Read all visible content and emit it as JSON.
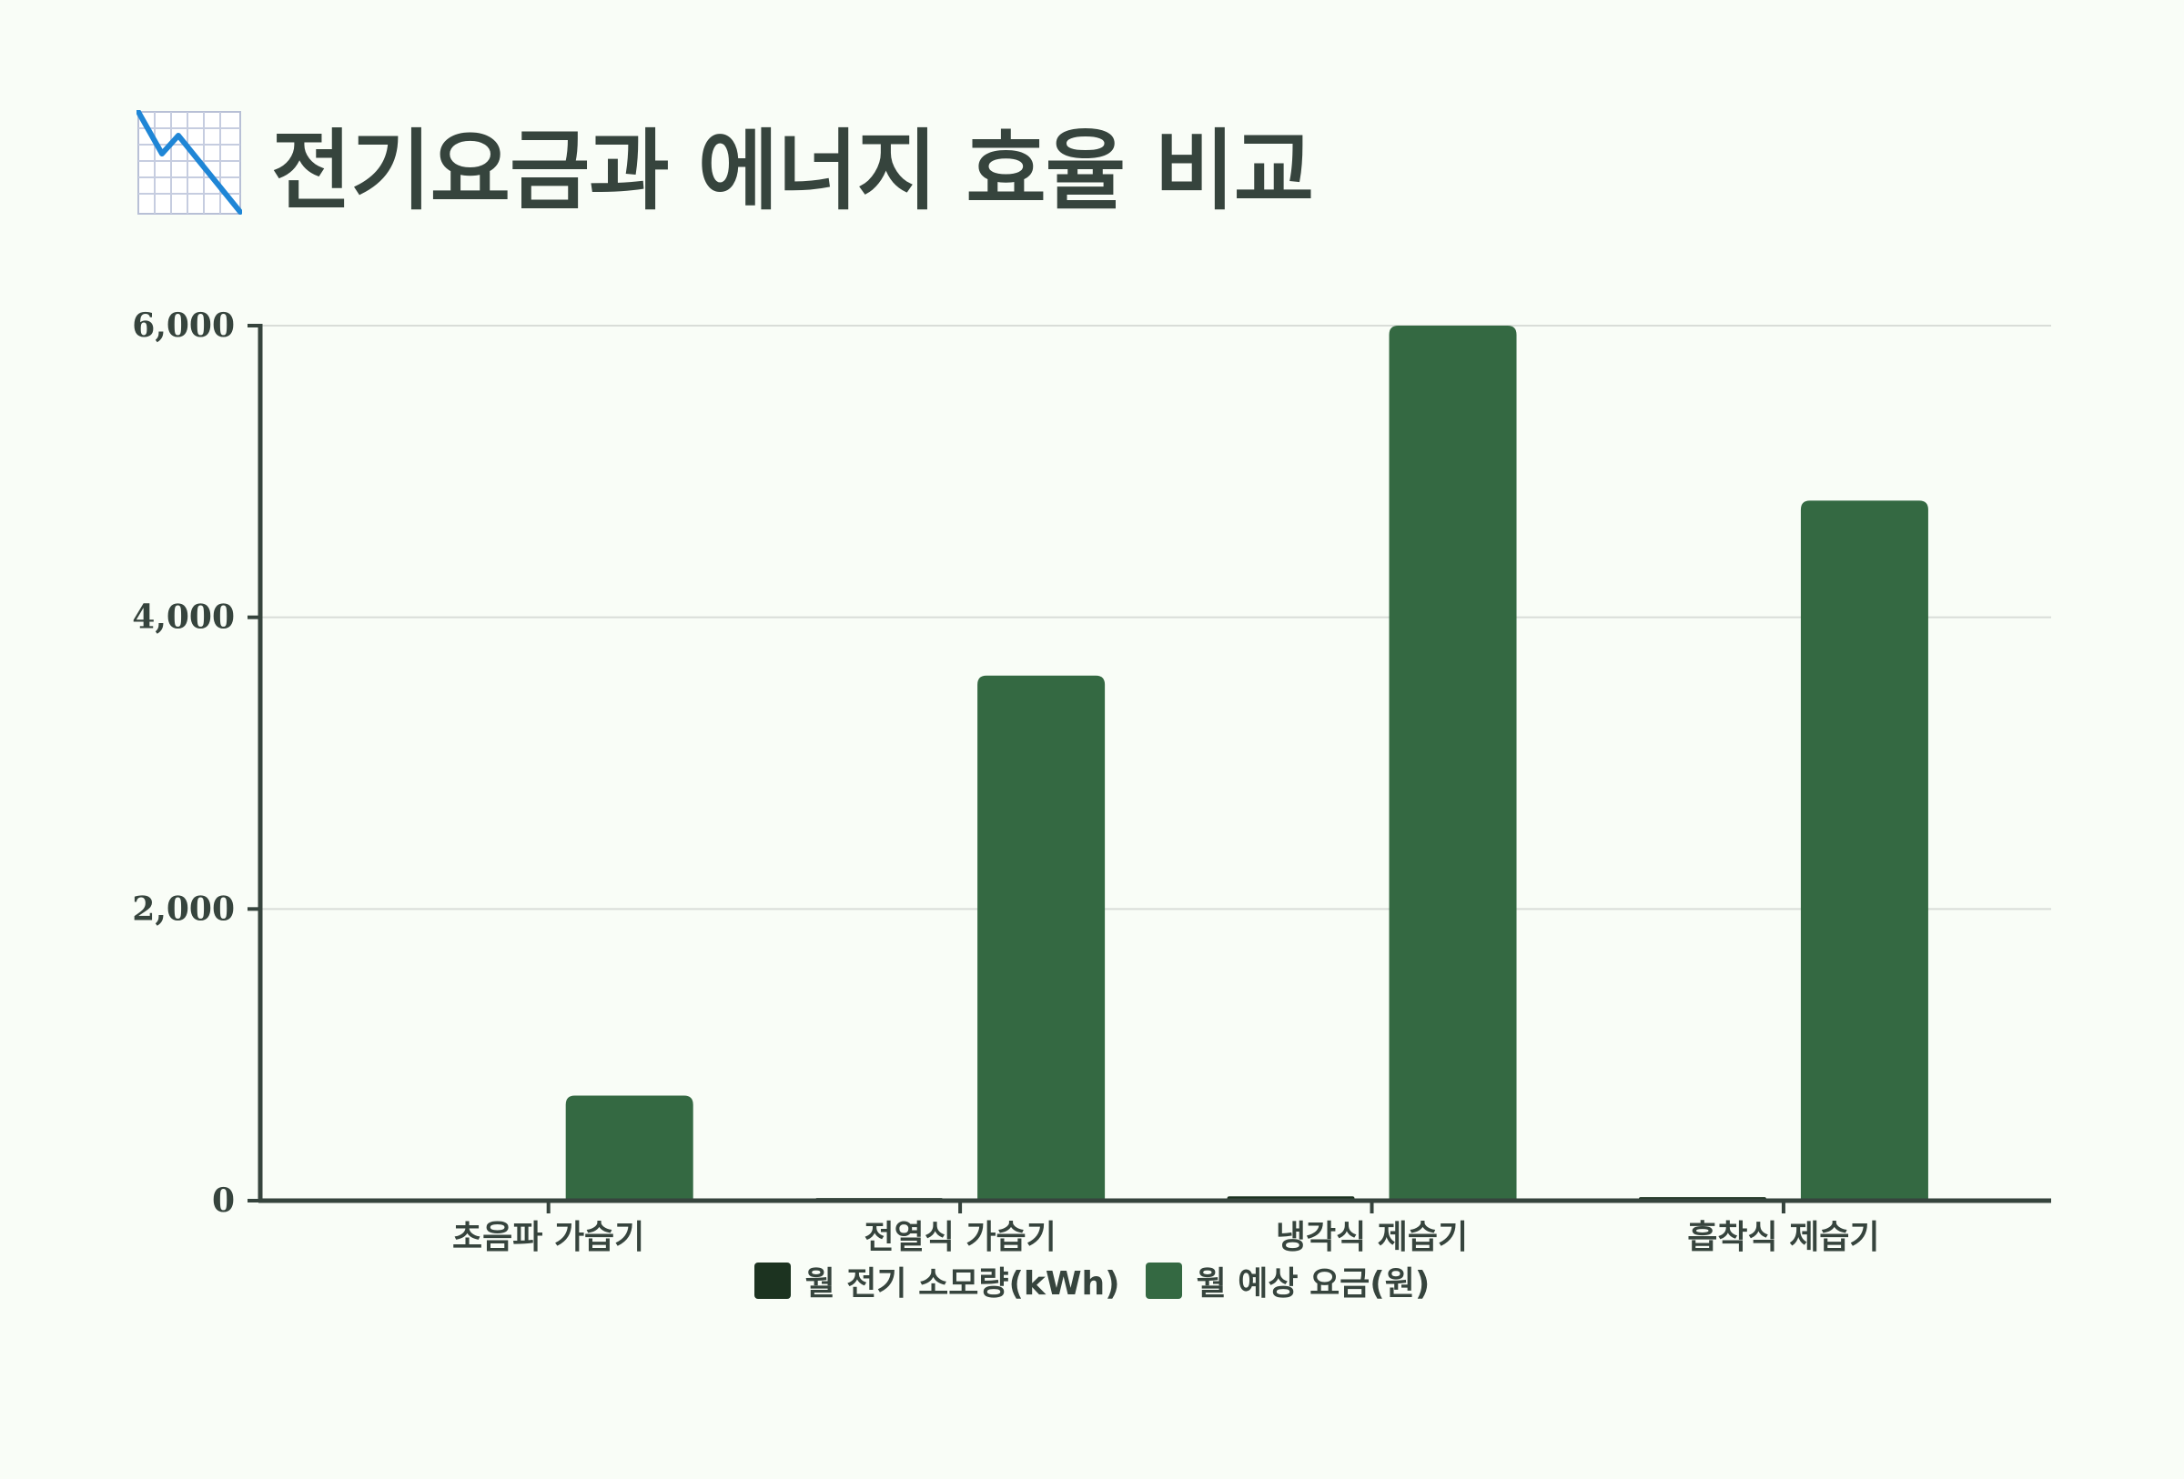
{
  "title": {
    "icon": "chart-decreasing-icon",
    "text": "전기요금과 에너지 효율 비교"
  },
  "colors": {
    "background": "#f9fdf7",
    "text": "#36443d",
    "axis": "#36443d",
    "grid": "#d9ddd8",
    "series_kwh": "#1c3320",
    "series_cost": "#346942"
  },
  "legend": {
    "items": [
      {
        "label": "월 전기 소모량(kWh)",
        "color": "#1c3320"
      },
      {
        "label": "월 예상 요금(원)",
        "color": "#346942"
      }
    ]
  },
  "chart_data": {
    "type": "bar",
    "title": "전기요금과 에너지 효율 비교",
    "xlabel": "",
    "ylabel": "",
    "categories": [
      "초음파 가습기",
      "전열식 가습기",
      "냉각식 제습기",
      "흡착식 제습기"
    ],
    "series": [
      {
        "name": "월 전기 소모량(kWh)",
        "values": [
          5,
          18,
          30,
          24
        ]
      },
      {
        "name": "월 예상 요금(원)",
        "values": [
          720,
          3600,
          6000,
          4800
        ]
      }
    ],
    "ylim": [
      0,
      6000
    ],
    "yticks": [
      0,
      2000,
      4000,
      6000
    ],
    "ytick_labels": [
      "0",
      "2,000",
      "4,000",
      "6,000"
    ],
    "grid": true,
    "legend_position": "bottom-center"
  }
}
